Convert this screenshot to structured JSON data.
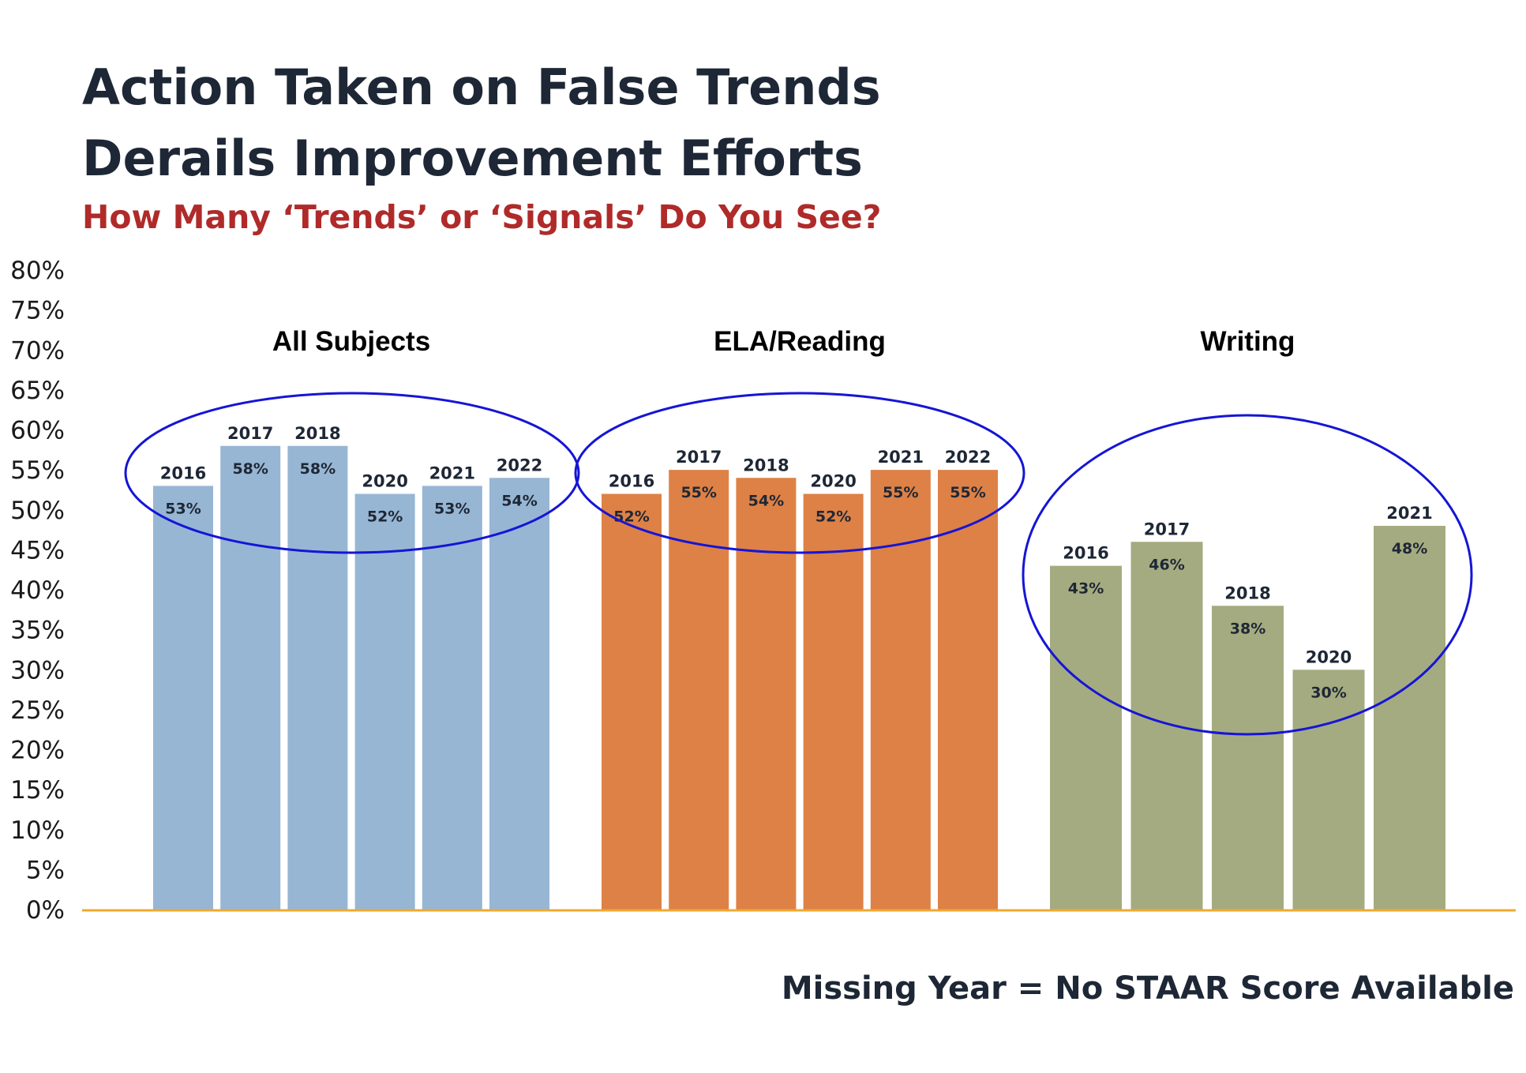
{
  "title_lines": [
    "Action Taken on False Trends",
    "Derails Improvement Efforts"
  ],
  "subtitle": "How Many ‘Trends’ or ‘Signals’ Do You See?",
  "footnote": "Missing Year = No STAAR Score Available",
  "chart_data": {
    "type": "bar",
    "ylim": [
      0,
      80
    ],
    "ytick_step": 5,
    "ytick_suffix": "%",
    "grid": false,
    "axis_color": "#f0a92e",
    "ellipse_color": "#1515d6",
    "groups": [
      {
        "name": "All Subjects",
        "color": "#97b6d4",
        "categories": [
          "2016",
          "2017",
          "2018",
          "2020",
          "2021",
          "2022"
        ],
        "values": [
          53,
          58,
          58,
          52,
          53,
          54
        ],
        "value_labels": [
          "53%",
          "58%",
          "58%",
          "52%",
          "53%",
          "54%"
        ]
      },
      {
        "name": "ELA/Reading",
        "color": "#de8146",
        "categories": [
          "2016",
          "2017",
          "2018",
          "2020",
          "2021",
          "2022"
        ],
        "values": [
          52,
          55,
          54,
          52,
          55,
          55
        ],
        "value_labels": [
          "52%",
          "55%",
          "54%",
          "52%",
          "55%",
          "55%"
        ]
      },
      {
        "name": "Writing",
        "color": "#a5ab80",
        "categories": [
          "2016",
          "2017",
          "2018",
          "2020",
          "2021"
        ],
        "values": [
          43,
          46,
          38,
          30,
          48
        ],
        "value_labels": [
          "43%",
          "46%",
          "38%",
          "30%",
          "48%"
        ]
      }
    ]
  }
}
